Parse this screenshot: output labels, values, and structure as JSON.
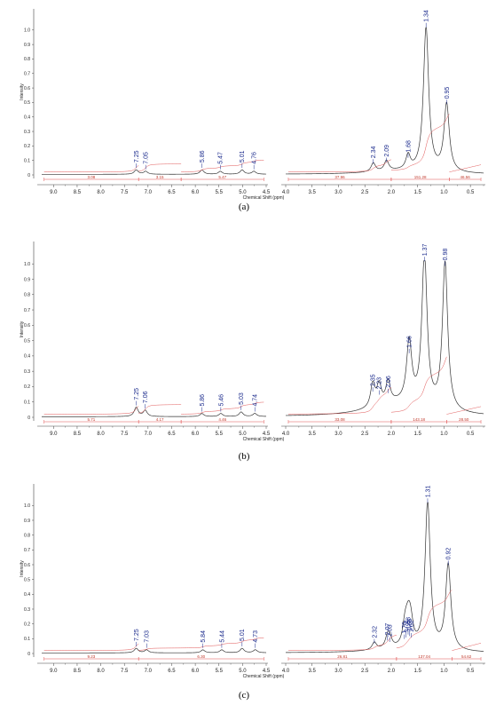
{
  "chart_data": [
    {
      "type": "line",
      "panel_label": "(a)",
      "xlabel": "Chemical Shift (ppm)",
      "ylabel": "Intensity",
      "colors": {
        "spectrum": "#333333",
        "integral": "#e05050",
        "peak_label": "#1a2a8c"
      },
      "segments": [
        {
          "xlim": [
            9.25,
            4.5
          ],
          "xticks": [
            "9.0",
            "8.5",
            "8.0",
            "7.5",
            "7.0",
            "6.5",
            "6.0",
            "5.5",
            "5.0",
            "4.5"
          ],
          "xtick_values": [
            9.0,
            8.5,
            8.0,
            7.5,
            7.0,
            6.5,
            6.0,
            5.5,
            5.0,
            4.5
          ]
        },
        {
          "xlim": [
            4.0,
            0.25
          ],
          "xticks": [
            "4.0",
            "3.5",
            "3.0",
            "2.5",
            "2.0",
            "1.5",
            "1.0",
            "0.5"
          ],
          "xtick_values": [
            4.0,
            3.5,
            3.0,
            2.5,
            2.0,
            1.5,
            1.0,
            0.5
          ]
        }
      ],
      "ylim": [
        -0.05,
        1.1
      ],
      "yticks": [
        "1.0",
        "0.9",
        "0.8",
        "0.7",
        "0.6",
        "0.5",
        "0.4",
        "0.3",
        "0.2",
        "0.1",
        "0"
      ],
      "ytick_values": [
        1.0,
        0.9,
        0.8,
        0.7,
        0.6,
        0.5,
        0.4,
        0.3,
        0.2,
        0.1,
        0
      ],
      "peaks": [
        {
          "x": 7.25,
          "y": 0.03,
          "label": "7.25"
        },
        {
          "x": 7.05,
          "y": 0.02,
          "label": "7.05"
        },
        {
          "x": 5.86,
          "y": 0.03,
          "label": "5.86"
        },
        {
          "x": 5.47,
          "y": 0.02,
          "label": "5.47"
        },
        {
          "x": 5.01,
          "y": 0.03,
          "label": "5.01"
        },
        {
          "x": 4.76,
          "y": 0.02,
          "label": "4.76"
        },
        {
          "x": 2.34,
          "y": 0.06,
          "label": "2.34"
        },
        {
          "x": 2.09,
          "y": 0.07,
          "label": "2.09"
        },
        {
          "x": 1.68,
          "y": 0.1,
          "label": "1.68"
        },
        {
          "x": 1.34,
          "y": 1.0,
          "label": "1.34"
        },
        {
          "x": 0.95,
          "y": 0.47,
          "label": "0.95"
        }
      ],
      "integrals": [
        {
          "from": 9.2,
          "to": 7.2,
          "label": "3.08"
        },
        {
          "from": 7.2,
          "to": 6.3,
          "label": "3.15"
        },
        {
          "from": 6.3,
          "to": 4.55,
          "label": "5.47"
        },
        {
          "from": 3.95,
          "to": 2.0,
          "label": "37.96"
        },
        {
          "from": 2.0,
          "to": 0.9,
          "label": "151.28"
        },
        {
          "from": 0.9,
          "to": 0.3,
          "label": "46.56"
        }
      ]
    },
    {
      "type": "line",
      "panel_label": "(b)",
      "xlabel": "Chemical Shift (ppm)",
      "ylabel": "Intensity",
      "colors": {
        "spectrum": "#333333",
        "integral": "#e05050",
        "peak_label": "#1a2a8c"
      },
      "segments": [
        {
          "xlim": [
            9.25,
            4.5
          ],
          "xticks": [
            "9.0",
            "8.5",
            "8.0",
            "7.5",
            "7.0",
            "6.5",
            "6.0",
            "5.5",
            "5.0",
            "4.5"
          ],
          "xtick_values": [
            9.0,
            8.5,
            8.0,
            7.5,
            7.0,
            6.5,
            6.0,
            5.5,
            5.0,
            4.5
          ]
        },
        {
          "xlim": [
            4.0,
            0.25
          ],
          "xticks": [
            "4.0",
            "3.5",
            "3.0",
            "2.5",
            "2.0",
            "1.5",
            "1.0",
            "0.5"
          ],
          "xtick_values": [
            4.0,
            3.5,
            3.0,
            2.5,
            2.0,
            1.5,
            1.0,
            0.5
          ]
        }
      ],
      "ylim": [
        -0.05,
        1.1
      ],
      "yticks": [
        "1.0",
        "0.9",
        "0.8",
        "0.7",
        "0.6",
        "0.5",
        "0.4",
        "0.3",
        "0.2",
        "0.1",
        "0"
      ],
      "ytick_values": [
        1.0,
        0.9,
        0.8,
        0.7,
        0.6,
        0.5,
        0.4,
        0.3,
        0.2,
        0.1,
        0
      ],
      "peaks": [
        {
          "x": 7.25,
          "y": 0.06,
          "label": "7.25"
        },
        {
          "x": 7.06,
          "y": 0.04,
          "label": "7.06"
        },
        {
          "x": 5.86,
          "y": 0.02,
          "label": "5.86"
        },
        {
          "x": 5.46,
          "y": 0.02,
          "label": "5.46"
        },
        {
          "x": 5.03,
          "y": 0.03,
          "label": "5.03"
        },
        {
          "x": 4.74,
          "y": 0.02,
          "label": "4.74"
        },
        {
          "x": 2.35,
          "y": 0.15,
          "label": "2.35"
        },
        {
          "x": 2.23,
          "y": 0.13,
          "label": "2.23"
        },
        {
          "x": 2.06,
          "y": 0.14,
          "label": "2.06"
        },
        {
          "x": 1.66,
          "y": 0.4,
          "label": "1.66"
        },
        {
          "x": 1.37,
          "y": 1.0,
          "label": "1.37"
        },
        {
          "x": 0.98,
          "y": 0.97,
          "label": "0.98"
        }
      ],
      "integrals": [
        {
          "from": 9.2,
          "to": 7.2,
          "label": "5.71"
        },
        {
          "from": 7.2,
          "to": 6.3,
          "label": "4.17"
        },
        {
          "from": 6.3,
          "to": 4.55,
          "label": "4.46"
        },
        {
          "from": 3.95,
          "to": 2.0,
          "label": "33.08"
        },
        {
          "from": 2.0,
          "to": 0.95,
          "label": "143.18"
        },
        {
          "from": 0.95,
          "to": 0.3,
          "label": "28.50"
        }
      ]
    },
    {
      "type": "line",
      "panel_label": "(c)",
      "xlabel": "Chemical Shift (ppm)",
      "ylabel": "Intensity",
      "colors": {
        "spectrum": "#333333",
        "integral": "#e05050",
        "peak_label": "#1a2a8c"
      },
      "segments": [
        {
          "xlim": [
            9.25,
            4.5
          ],
          "xticks": [
            "9.0",
            "8.5",
            "8.0",
            "7.5",
            "7.0",
            "6.5",
            "6.0",
            "5.5",
            "5.0",
            "4.5"
          ],
          "xtick_values": [
            9.0,
            8.5,
            8.0,
            7.5,
            7.0,
            6.5,
            6.0,
            5.5,
            5.0,
            4.5
          ]
        },
        {
          "xlim": [
            4.0,
            0.25
          ],
          "xticks": [
            "4.0",
            "3.5",
            "3.0",
            "2.5",
            "2.0",
            "1.5",
            "1.0",
            "0.5"
          ],
          "xtick_values": [
            4.0,
            3.5,
            3.0,
            2.5,
            2.0,
            1.5,
            1.0,
            0.5
          ]
        }
      ],
      "ylim": [
        -0.05,
        1.1
      ],
      "yticks": [
        "1.0",
        "0.9",
        "0.8",
        "0.7",
        "0.6",
        "0.5",
        "0.4",
        "0.3",
        "0.2",
        "0.1",
        "0"
      ],
      "ytick_values": [
        1.0,
        0.9,
        0.8,
        0.7,
        0.6,
        0.5,
        0.4,
        0.3,
        0.2,
        0.1,
        0
      ],
      "peaks": [
        {
          "x": 7.25,
          "y": 0.03,
          "label": "7.25"
        },
        {
          "x": 7.03,
          "y": 0.02,
          "label": "7.03"
        },
        {
          "x": 5.84,
          "y": 0.02,
          "label": "5.84"
        },
        {
          "x": 5.44,
          "y": 0.02,
          "label": "5.44"
        },
        {
          "x": 5.01,
          "y": 0.03,
          "label": "5.01"
        },
        {
          "x": 4.73,
          "y": 0.02,
          "label": "4.73"
        },
        {
          "x": 2.32,
          "y": 0.05,
          "label": "2.32"
        },
        {
          "x": 2.07,
          "y": 0.07,
          "label": "2.07"
        },
        {
          "x": 2.03,
          "y": 0.06,
          "label": "2.03"
        },
        {
          "x": 1.75,
          "y": 0.08,
          "label": "1.75"
        },
        {
          "x": 1.72,
          "y": 0.09,
          "label": "1.72"
        },
        {
          "x": 1.68,
          "y": 0.11,
          "label": "1.68"
        },
        {
          "x": 1.65,
          "y": 0.1,
          "label": "1.65"
        },
        {
          "x": 1.62,
          "y": 0.09,
          "label": "1.62"
        },
        {
          "x": 1.31,
          "y": 1.0,
          "label": "1.31"
        },
        {
          "x": 0.92,
          "y": 0.58,
          "label": "0.92"
        }
      ],
      "integrals": [
        {
          "from": 9.2,
          "to": 7.2,
          "label": "9.23"
        },
        {
          "from": 7.2,
          "to": 4.55,
          "label": "6.30"
        },
        {
          "from": 3.95,
          "to": 1.9,
          "label": "26.81"
        },
        {
          "from": 1.9,
          "to": 0.85,
          "label": "137.04"
        },
        {
          "from": 0.85,
          "to": 0.3,
          "label": "54.62"
        }
      ]
    }
  ]
}
